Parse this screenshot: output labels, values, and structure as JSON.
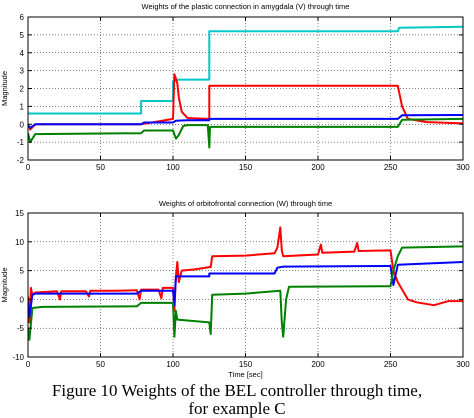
{
  "chart_data": [
    {
      "type": "line",
      "title": "Weights of the plastic connection in amygdala (V) through time",
      "xlabel": "",
      "ylabel": "Magnitude",
      "xlim": [
        0,
        300
      ],
      "ylim": [
        -2,
        6
      ],
      "xticks": [
        0,
        50,
        100,
        150,
        200,
        250,
        300
      ],
      "yticks": [
        -2,
        -1,
        0,
        1,
        2,
        3,
        4,
        5,
        6
      ],
      "grid": true,
      "series": [
        {
          "color": "#00c8c8",
          "points": [
            [
              0,
              0.6
            ],
            [
              1,
              0.6
            ],
            [
              1.5,
              0.6
            ],
            [
              78,
              0.6
            ],
            [
              78,
              1.3
            ],
            [
              100,
              1.3
            ],
            [
              100,
              2.4
            ],
            [
              104,
              2.5
            ],
            [
              110,
              2.5
            ],
            [
              125,
              2.5
            ],
            [
              125,
              5.2
            ],
            [
              255,
              5.2
            ],
            [
              256,
              5.4
            ],
            [
              300,
              5.45
            ]
          ]
        },
        {
          "color": "#ff0000",
          "points": [
            [
              0,
              0
            ],
            [
              1.5,
              -0.3
            ],
            [
              5,
              0
            ],
            [
              78,
              0
            ],
            [
              100,
              0.3
            ],
            [
              101,
              2.8
            ],
            [
              103,
              2.3
            ],
            [
              104,
              1.5
            ],
            [
              106,
              0.7
            ],
            [
              110,
              0.35
            ],
            [
              124,
              0.3
            ],
            [
              125,
              0.3
            ],
            [
              125,
              2.15
            ],
            [
              255,
              2.15
            ],
            [
              258,
              1.0
            ],
            [
              262,
              0.3
            ],
            [
              275,
              0.12
            ],
            [
              300,
              0.05
            ]
          ]
        },
        {
          "color": "#0000ff",
          "points": [
            [
              0,
              -0.05
            ],
            [
              1.5,
              -0.2
            ],
            [
              5,
              0
            ],
            [
              78,
              0
            ],
            [
              80,
              0.1
            ],
            [
              100,
              0.1
            ],
            [
              102,
              0.2
            ],
            [
              110,
              0.22
            ],
            [
              125,
              0.22
            ],
            [
              125,
              0.3
            ],
            [
              255,
              0.3
            ],
            [
              258,
              0.5
            ],
            [
              300,
              0.52
            ]
          ]
        },
        {
          "color": "#008000",
          "points": [
            [
              0,
              -0.5
            ],
            [
              1.5,
              -1.0
            ],
            [
              5,
              -0.55
            ],
            [
              78,
              -0.5
            ],
            [
              80,
              -0.35
            ],
            [
              100,
              -0.35
            ],
            [
              102,
              -0.8
            ],
            [
              104,
              -0.6
            ],
            [
              107,
              -0.1
            ],
            [
              110,
              -0.05
            ],
            [
              124,
              -0.05
            ],
            [
              125,
              -1.3
            ],
            [
              125.5,
              -0.15
            ],
            [
              255,
              -0.15
            ],
            [
              258,
              0.25
            ],
            [
              300,
              0.3
            ]
          ]
        }
      ]
    },
    {
      "type": "line",
      "title": "Weights of orbitofrontal connection (W) through time",
      "xlabel": "Time [sec]",
      "ylabel": "Magnitude",
      "xlim": [
        0,
        300
      ],
      "ylim": [
        -10,
        15
      ],
      "xticks": [
        0,
        50,
        100,
        150,
        200,
        250,
        300
      ],
      "yticks": [
        -10,
        -5,
        0,
        5,
        10,
        15
      ],
      "grid": true,
      "series": [
        {
          "color": "#ff0000",
          "points": [
            [
              0,
              0.5
            ],
            [
              1,
              -4
            ],
            [
              2,
              2
            ],
            [
              3,
              0.8
            ],
            [
              5,
              1.2
            ],
            [
              20,
              1.4
            ],
            [
              22,
              0
            ],
            [
              23,
              1.4
            ],
            [
              40,
              1.4
            ],
            [
              42,
              0.5
            ],
            [
              43,
              1.5
            ],
            [
              60,
              1.5
            ],
            [
              75,
              1.6
            ],
            [
              77,
              0
            ],
            [
              78,
              1.7
            ],
            [
              90,
              1.7
            ],
            [
              92,
              0.2
            ],
            [
              93,
              2.0
            ],
            [
              100,
              2.0
            ],
            [
              101,
              -2
            ],
            [
              102,
              4
            ],
            [
              103,
              6.5
            ],
            [
              104,
              3
            ],
            [
              106,
              5.0
            ],
            [
              115,
              5.2
            ],
            [
              125,
              5.6
            ],
            [
              126,
              5.6
            ],
            [
              127,
              7.5
            ],
            [
              150,
              7.6
            ],
            [
              170,
              8.0
            ],
            [
              172,
              9
            ],
            [
              174,
              12.5
            ],
            [
              175,
              8.5
            ],
            [
              176,
              7.5
            ],
            [
              200,
              7.8
            ],
            [
              202,
              9.5
            ],
            [
              203,
              8.1
            ],
            [
              225,
              8.3
            ],
            [
              227,
              9.8
            ],
            [
              228,
              8.4
            ],
            [
              250,
              8.5
            ],
            [
              252,
              5
            ],
            [
              255,
              3
            ],
            [
              262,
              0
            ],
            [
              268,
              -0.5
            ],
            [
              280,
              -1.0
            ],
            [
              290,
              -0.3
            ],
            [
              300,
              -0.3
            ]
          ]
        },
        {
          "color": "#0000ff",
          "points": [
            [
              0,
              -0.5
            ],
            [
              1,
              -3
            ],
            [
              3,
              0.8
            ],
            [
              5,
              1.0
            ],
            [
              75,
              1.0
            ],
            [
              78,
              1.5
            ],
            [
              100,
              1.5
            ],
            [
              101,
              -1
            ],
            [
              102,
              4.0
            ],
            [
              125,
              4.0
            ],
            [
              125,
              4.5
            ],
            [
              170,
              4.5
            ],
            [
              172,
              5.5
            ],
            [
              176,
              5.7
            ],
            [
              250,
              5.8
            ],
            [
              252,
              2.5
            ],
            [
              255,
              6.0
            ],
            [
              300,
              6.5
            ]
          ]
        },
        {
          "color": "#008000",
          "points": [
            [
              0,
              -5
            ],
            [
              1,
              -7
            ],
            [
              3,
              -1.5
            ],
            [
              10,
              -1.3
            ],
            [
              75,
              -1.2
            ],
            [
              78,
              -0.6
            ],
            [
              100,
              -0.6
            ],
            [
              101,
              -6.5
            ],
            [
              102,
              -2
            ],
            [
              103,
              -3.5
            ],
            [
              125,
              -4.0
            ],
            [
              126,
              -6
            ],
            [
              127,
              0.8
            ],
            [
              150,
              1.0
            ],
            [
              174,
              1.5
            ],
            [
              175,
              -4
            ],
            [
              176,
              -6.5
            ],
            [
              178,
              0
            ],
            [
              180,
              2.2
            ],
            [
              250,
              2.3
            ],
            [
              252,
              5
            ],
            [
              255,
              7.5
            ],
            [
              258,
              9.0
            ],
            [
              300,
              9.2
            ]
          ]
        }
      ]
    }
  ],
  "caption": {
    "line1": "Figure 10 Weights of the BEL controller through time,",
    "line2": "for example C"
  }
}
